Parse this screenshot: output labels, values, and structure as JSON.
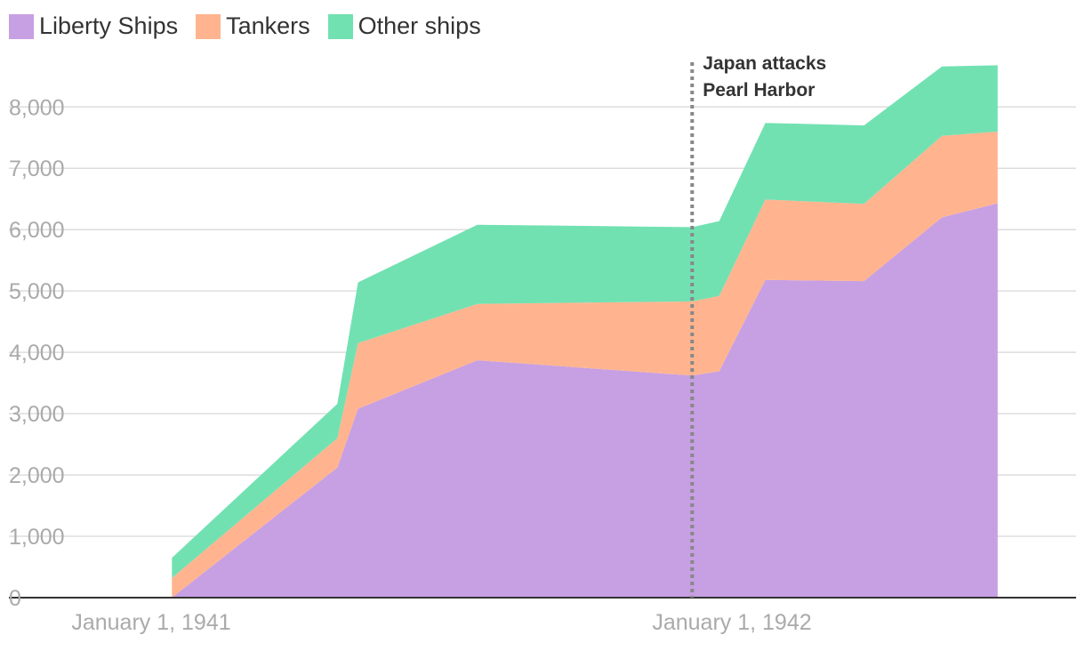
{
  "legend": [
    {
      "label": "Liberty Ships",
      "color": "#c79fe3"
    },
    {
      "label": "Tankers",
      "color": "#ffb48f"
    },
    {
      "label": "Other ships",
      "color": "#72e1b2"
    }
  ],
  "chart_data": {
    "type": "area",
    "stacked": true,
    "title": "",
    "xlabel": "",
    "ylabel": "",
    "ylim": [
      0,
      8700
    ],
    "yticks": [
      0,
      1000,
      2000,
      3000,
      4000,
      5000,
      6000,
      7000,
      8000
    ],
    "ytick_labels": [
      "0",
      "1,000",
      "2,000",
      "3,000",
      "4,000",
      "5,000",
      "6,000",
      "7,000",
      "8,000"
    ],
    "x_ticks": [
      {
        "label": "January 1, 1941",
        "date": "1941-01-01"
      },
      {
        "label": "January 1, 1942",
        "date": "1942-01-01"
      }
    ],
    "x": [
      "1941-01-14",
      "1941-04-28",
      "1941-05-11",
      "1941-07-25",
      "1941-12-07",
      "1941-12-24",
      "1942-01-22",
      "1942-03-25",
      "1942-05-13",
      "1942-06-17"
    ],
    "series": [
      {
        "name": "Liberty Ships",
        "color": "#c79fe3",
        "values": [
          0,
          2120,
          3080,
          3870,
          3620,
          3690,
          5180,
          5160,
          6200,
          6430
        ]
      },
      {
        "name": "Tankers",
        "color": "#ffb48f",
        "values": [
          320,
          480,
          1070,
          920,
          1210,
          1230,
          1310,
          1260,
          1330,
          1170
        ]
      },
      {
        "name": "Other ships",
        "color": "#72e1b2",
        "values": [
          330,
          560,
          990,
          1290,
          1210,
          1220,
          1250,
          1280,
          1130,
          1080
        ]
      }
    ],
    "grid": true,
    "legend_position": "top-left",
    "annotations": [
      {
        "date": "1941-12-07",
        "lines": [
          "Japan attacks",
          "Pearl Harbor"
        ]
      }
    ]
  }
}
